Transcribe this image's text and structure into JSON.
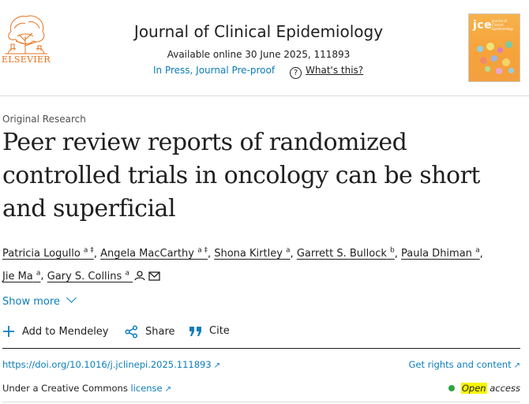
{
  "header": {
    "publisher_logo_text": "ELSEVIER",
    "journal_title": "Journal of Clinical Epidemiology",
    "available_online": "Available online 30 June 2025, 111893",
    "status": "In Press, Journal Pre-proof",
    "help_icon": "question-circle-icon",
    "help_label": "What's this?",
    "cover": {
      "abbrev": "jce",
      "subtitle": "Journal of Clinical Epidemiology"
    }
  },
  "article": {
    "type": "Original Research",
    "title": "Peer review reports of randomized controlled trials in oncology can be short and superficial",
    "authors": [
      {
        "name": "Patricia Logullo",
        "sup": "a ‡"
      },
      {
        "name": "Angela MacCarthy",
        "sup": "a ‡"
      },
      {
        "name": "Shona Kirtley",
        "sup": "a"
      },
      {
        "name": "Garrett S. Bullock",
        "sup": "b"
      },
      {
        "name": "Paula Dhiman",
        "sup": "a"
      },
      {
        "name": "Jie Ma",
        "sup": "a"
      },
      {
        "name": "Gary S. Collins",
        "sup": "a"
      }
    ],
    "show_more": "Show more"
  },
  "actions": {
    "mendeley": "Add to Mendeley",
    "share": "Share",
    "cite": "Cite"
  },
  "links": {
    "doi": "https://doi.org/10.1016/j.jclinepi.2025.111893",
    "rights": "Get rights and content",
    "license_prefix": "Under a Creative Commons",
    "license_link": "license",
    "open_word": "Open",
    "access_word": "access"
  },
  "colors": {
    "link_blue": "#0c7dbb",
    "elsevier_orange": "#e9711c",
    "open_access_green": "#2ea541",
    "highlight_yellow": "#f5f500"
  }
}
